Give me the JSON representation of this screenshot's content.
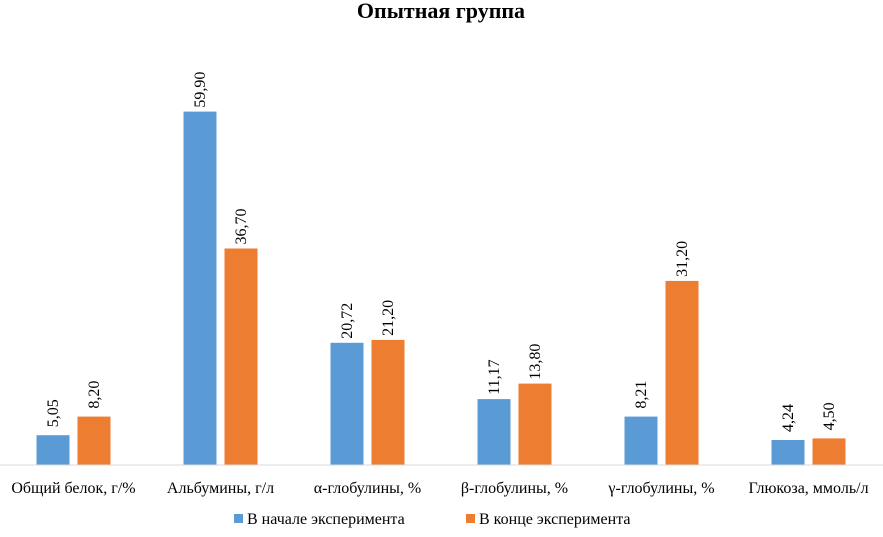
{
  "chart_data": {
    "type": "bar",
    "title": "Опытная группа",
    "xlabel": "",
    "ylabel": "",
    "ylim": [
      0,
      65
    ],
    "grid": false,
    "legend_position": "bottom",
    "categories": [
      "Общий белок, г/%",
      "Альбумины, г/л",
      "α-глобулины, %",
      "β-глобулины, %",
      "γ-глобулины, %",
      "Глюкоза, ммоль/л"
    ],
    "series": [
      {
        "name": "В начале эксперимента",
        "color": "#5B9BD5",
        "values": [
          5.05,
          59.9,
          20.72,
          11.17,
          8.21,
          4.24
        ],
        "labels": [
          "5,05",
          "59,90",
          "20,72",
          "11,17",
          "8,21",
          "4,24"
        ]
      },
      {
        "name": "В конце эксперимента",
        "color": "#ED7D31",
        "values": [
          8.2,
          36.7,
          21.2,
          13.8,
          31.2,
          4.5
        ],
        "labels": [
          "8,20",
          "36,70",
          "21,20",
          "13,80",
          "31,20",
          "4,50"
        ]
      }
    ]
  }
}
